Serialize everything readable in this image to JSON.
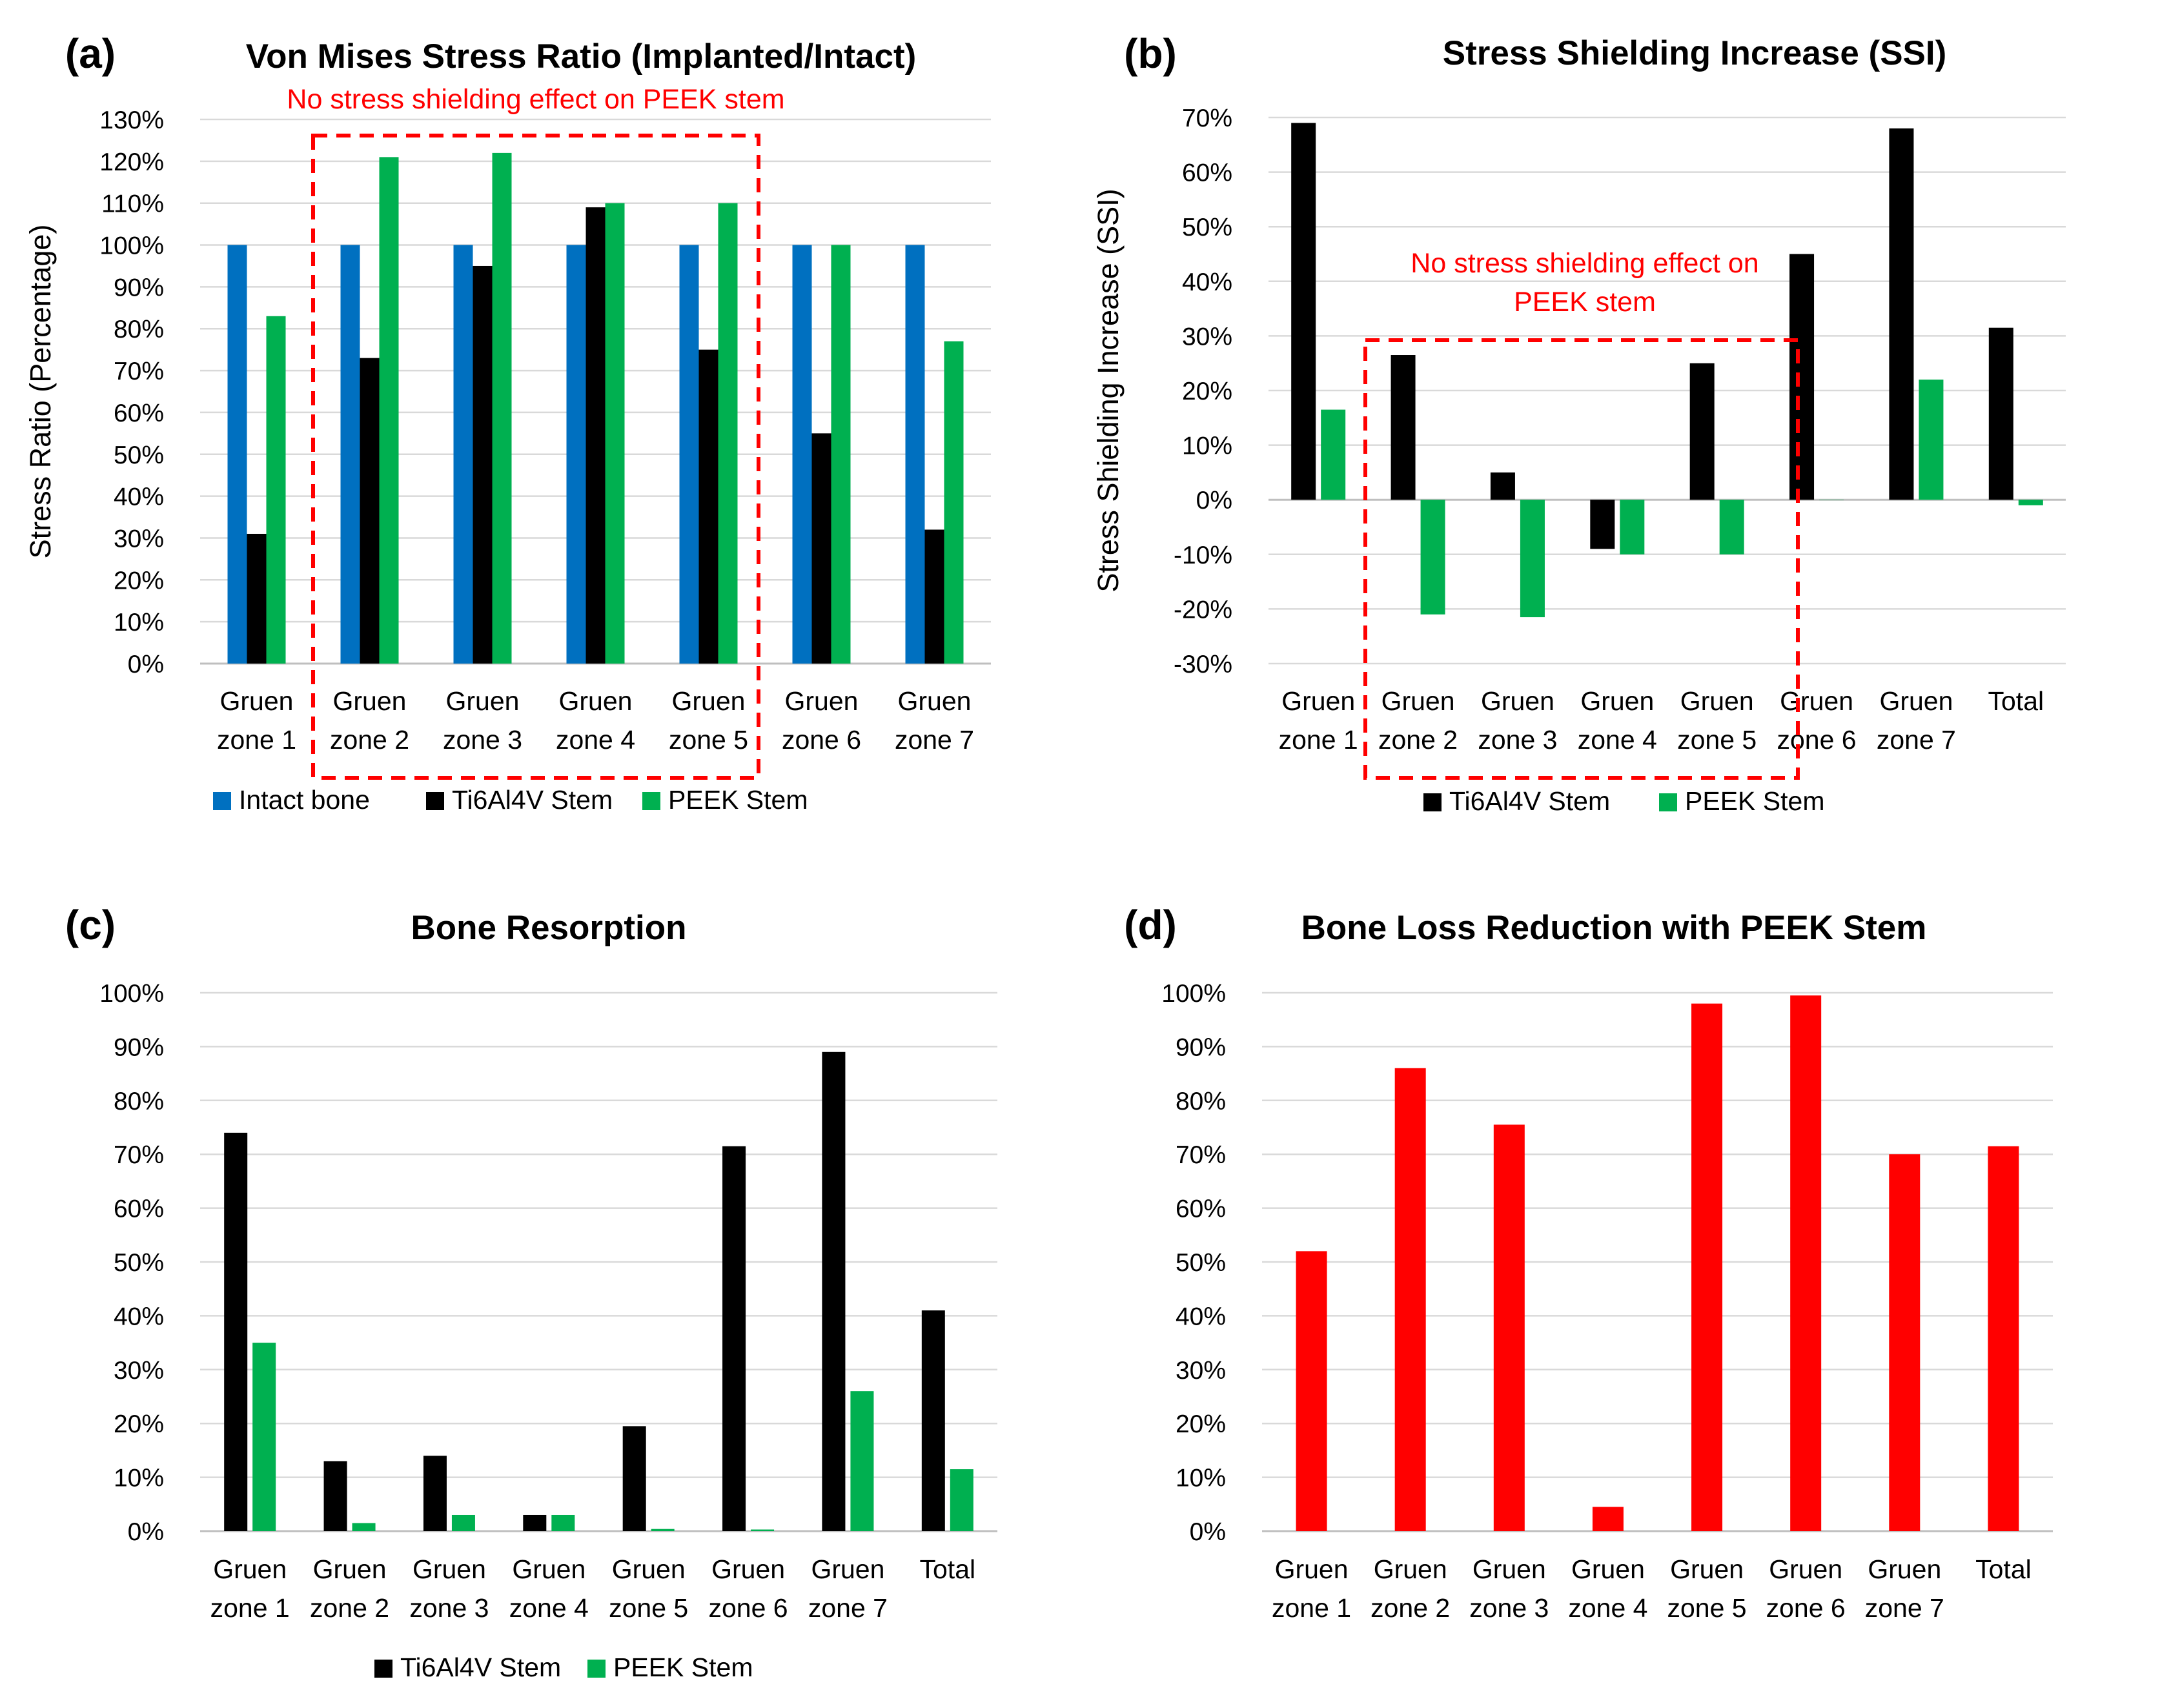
{
  "colors": {
    "intact": "#0070C0",
    "ti": "#000000",
    "peek": "#00B050",
    "red": "#FF0000",
    "grid": "#D9D9D9",
    "axis": "#BFBFBF",
    "text": "#000000"
  },
  "chart_data": [
    {
      "panel": "(a)",
      "type": "bar",
      "title": "Von Mises Stress Ratio (Implanted/Intact)",
      "ylabel": "Stress Ratio (Percentage)",
      "xlabel": "",
      "ylim": [
        0,
        130
      ],
      "ystep": 10,
      "categories": [
        [
          "Gruen",
          "zone 1"
        ],
        [
          "Gruen",
          "zone 2"
        ],
        [
          "Gruen",
          "zone 3"
        ],
        [
          "Gruen",
          "zone 4"
        ],
        [
          "Gruen",
          "zone 5"
        ],
        [
          "Gruen",
          "zone 6"
        ],
        [
          "Gruen",
          "zone 7"
        ]
      ],
      "series": [
        {
          "name": "Intact bone",
          "color_key": "intact",
          "values": [
            100,
            100,
            100,
            100,
            100,
            100,
            100
          ]
        },
        {
          "name": "Ti6Al4V Stem",
          "color_key": "ti",
          "values": [
            31,
            73,
            95,
            109,
            75,
            55,
            32
          ]
        },
        {
          "name": "PEEK Stem",
          "color_key": "peek",
          "values": [
            83,
            121,
            122,
            110,
            110,
            100,
            77
          ]
        }
      ],
      "annotation": {
        "text": "No stress shielding effect on PEEK stem",
        "from_category": 1,
        "to_category": 4
      }
    },
    {
      "panel": "(b)",
      "type": "bar",
      "title": "Stress Shielding Increase (SSI)",
      "ylabel": "Stress Shielding Increase (SSI)",
      "xlabel": "",
      "ylim": [
        -30,
        70
      ],
      "ystep": 10,
      "categories": [
        [
          "Gruen",
          "zone 1"
        ],
        [
          "Gruen",
          "zone 2"
        ],
        [
          "Gruen",
          "zone 3"
        ],
        [
          "Gruen",
          "zone 4"
        ],
        [
          "Gruen",
          "zone 5"
        ],
        [
          "Gruen",
          "zone 6"
        ],
        [
          "Gruen",
          "zone 7"
        ],
        [
          "Total"
        ]
      ],
      "series": [
        {
          "name": "Ti6Al4V Stem",
          "color_key": "ti",
          "values": [
            69,
            26.5,
            5,
            -9,
            25,
            45,
            68,
            31.5
          ]
        },
        {
          "name": "PEEK Stem",
          "color_key": "peek",
          "values": [
            16.5,
            -21,
            -21.5,
            -10,
            -10,
            0,
            22,
            -1
          ]
        }
      ],
      "annotation": {
        "text_lines": [
          "No stress shielding effect on",
          "PEEK stem"
        ],
        "from_category": 1,
        "to_category": 4
      }
    },
    {
      "panel": "(c)",
      "type": "bar",
      "title": "Bone Resorption",
      "ylabel": "",
      "xlabel": "",
      "ylim": [
        0,
        100
      ],
      "ystep": 10,
      "categories": [
        [
          "Gruen",
          "zone 1"
        ],
        [
          "Gruen",
          "zone 2"
        ],
        [
          "Gruen",
          "zone 3"
        ],
        [
          "Gruen",
          "zone 4"
        ],
        [
          "Gruen",
          "zone 5"
        ],
        [
          "Gruen",
          "zone 6"
        ],
        [
          "Gruen",
          "zone 7"
        ],
        [
          "Total"
        ]
      ],
      "series": [
        {
          "name": "Ti6Al4V Stem",
          "color_key": "ti",
          "values": [
            74,
            13,
            14,
            3,
            19.5,
            71.5,
            89,
            41
          ]
        },
        {
          "name": "PEEK Stem",
          "color_key": "peek",
          "values": [
            35,
            1.5,
            3,
            3,
            0.4,
            0.3,
            26,
            11.5
          ]
        }
      ]
    },
    {
      "panel": "(d)",
      "type": "bar",
      "title": "Bone Loss Reduction with PEEK Stem",
      "ylabel": "",
      "xlabel": "",
      "ylim": [
        0,
        100
      ],
      "ystep": 10,
      "categories": [
        [
          "Gruen",
          "zone 1"
        ],
        [
          "Gruen",
          "zone 2"
        ],
        [
          "Gruen",
          "zone 3"
        ],
        [
          "Gruen",
          "zone 4"
        ],
        [
          "Gruen",
          "zone 5"
        ],
        [
          "Gruen",
          "zone 6"
        ],
        [
          "Gruen",
          "zone 7"
        ],
        [
          "Total"
        ]
      ],
      "series": [
        {
          "name": "Bone loss reduction",
          "color_key": "red",
          "values": [
            52,
            86,
            75.5,
            4.5,
            98,
            99.5,
            70,
            71.5
          ]
        }
      ],
      "show_legend": false
    }
  ]
}
